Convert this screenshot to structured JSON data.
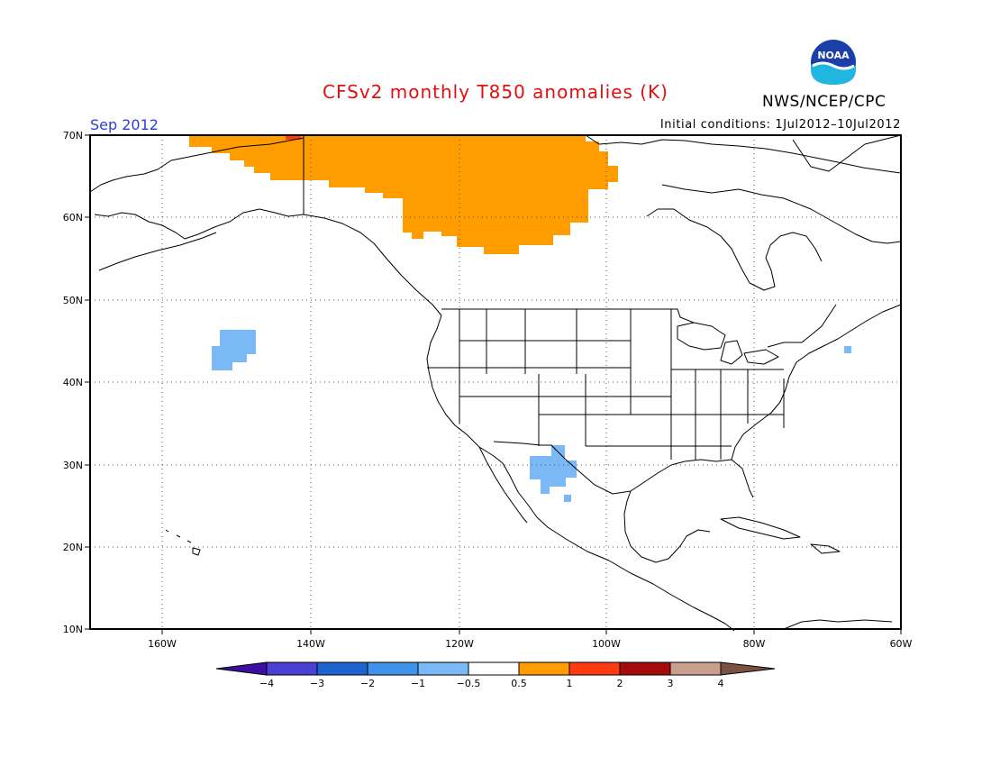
{
  "header": {
    "title": "CFSv2 monthly T850 anomalies (K)",
    "agency": "NWS/NCEP/CPC",
    "logo_text": "NOAA",
    "valid_month": "Sep 2012",
    "initial_conditions": "Initial conditions: 1Jul2012–10Jul2012"
  },
  "axes": {
    "lat_labels": [
      "70N",
      "60N",
      "50N",
      "40N",
      "30N",
      "20N",
      "10N"
    ],
    "lon_labels": [
      "160W",
      "140W",
      "120W",
      "100W",
      "80W",
      "60W"
    ]
  },
  "colorbar": {
    "labels": [
      "−4",
      "−3",
      "−2",
      "−1",
      "−0.5",
      "0.5",
      "1",
      "2",
      "3",
      "4"
    ],
    "colors": [
      "#3d0fa0",
      "#4b3fd4",
      "#1f63cf",
      "#3f93ea",
      "#7ab9f6",
      "#ffffff",
      "#ff9d00",
      "#ff3a10",
      "#a50b0b",
      "#c9a08d",
      "#7a5142"
    ]
  },
  "anomaly_regions": [
    {
      "name": "Alaska / NW Canada warm anomaly",
      "color": "#ff9d00"
    },
    {
      "name": "NE Pacific cool anomaly",
      "color": "#7ab9f6"
    },
    {
      "name": "Southwest US / N Mexico cool anomaly",
      "color": "#7ab9f6"
    }
  ]
}
